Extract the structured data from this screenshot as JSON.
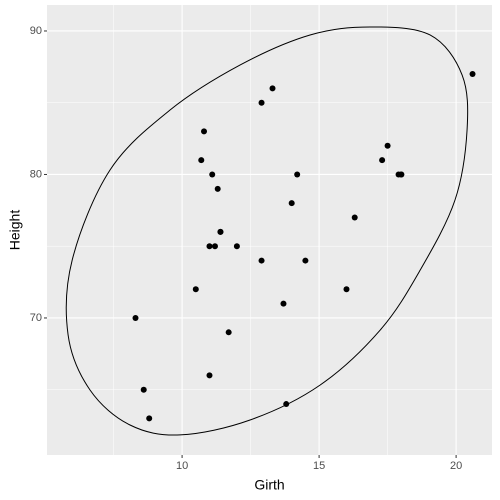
{
  "chart_data": {
    "type": "scatter",
    "x_label": "Girth",
    "y_label": "Height",
    "x": [
      8.3,
      8.6,
      8.8,
      10.5,
      10.7,
      10.8,
      11.0,
      11.0,
      11.1,
      11.2,
      11.3,
      11.4,
      11.4,
      11.7,
      12.0,
      12.9,
      12.9,
      13.3,
      13.7,
      13.8,
      14.0,
      14.2,
      14.5,
      16.0,
      16.3,
      17.3,
      17.5,
      17.9,
      18.0,
      18.0,
      20.6
    ],
    "values": [
      70,
      65,
      63,
      72,
      81,
      83,
      66,
      75,
      80,
      75,
      79,
      76,
      76,
      69,
      75,
      74,
      85,
      86,
      71,
      64,
      78,
      80,
      74,
      72,
      77,
      81,
      82,
      80,
      80,
      80,
      87
    ],
    "color": "#000000",
    "ellipse": {
      "x": [
        16.86,
        19.05,
        20.22,
        20.4,
        19.96,
        18.69,
        17.23,
        15.04,
        12.48,
        9.93,
        8.1,
        6.64,
        5.84,
        5.99,
        7.37,
        9.56,
        12.12,
        14.67
      ],
      "y": [
        90.28,
        89.72,
        86.93,
        83.1,
        78.22,
        73.34,
        69.16,
        65.33,
        62.89,
        61.85,
        62.54,
        64.98,
        68.82,
        74.04,
        80.31,
        84.49,
        87.63,
        89.72
      ],
      "color": "#000000"
    },
    "xlim": [
      5.07,
      21.31
    ],
    "ylim": [
      60.45,
      91.81
    ],
    "xticks": [
      10,
      15,
      20
    ],
    "yticks": [
      70,
      80,
      90
    ],
    "grid": true
  }
}
